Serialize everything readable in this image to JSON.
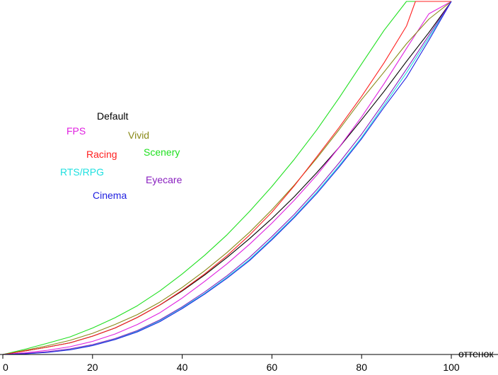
{
  "chart_data": {
    "type": "line",
    "title": "",
    "xlabel": "оттенок",
    "ylabel": "",
    "xlim": [
      0,
      100
    ],
    "ylim": [
      0,
      1
    ],
    "x_ticks": [
      "0",
      "20",
      "40",
      "60",
      "80",
      "100"
    ],
    "grid": false,
    "legend_placement": "left-center",
    "series": [
      {
        "name": "Default",
        "color": "#000000",
        "x": [
          0,
          5,
          10,
          15,
          20,
          25,
          30,
          35,
          40,
          45,
          50,
          55,
          60,
          65,
          70,
          75,
          80,
          85,
          90,
          95,
          100
        ],
        "y": [
          0,
          0.01,
          0.021,
          0.033,
          0.052,
          0.075,
          0.105,
          0.14,
          0.18,
          0.225,
          0.275,
          0.328,
          0.385,
          0.447,
          0.515,
          0.587,
          0.665,
          0.745,
          0.83,
          0.912,
          1.0
        ]
      },
      {
        "name": "FPS",
        "color": "#e020e0",
        "x": [
          0,
          5,
          10,
          15,
          20,
          25,
          30,
          35,
          40,
          45,
          50,
          55,
          60,
          65,
          70,
          75,
          80,
          85,
          90,
          95,
          100
        ],
        "y": [
          0,
          0.005,
          0.012,
          0.022,
          0.037,
          0.058,
          0.085,
          0.118,
          0.16,
          0.207,
          0.257,
          0.312,
          0.372,
          0.437,
          0.508,
          0.587,
          0.673,
          0.767,
          0.867,
          0.965,
          1.0
        ]
      },
      {
        "name": "Vivid",
        "color": "#8a8a1a",
        "x": [
          0,
          5,
          10,
          15,
          20,
          25,
          30,
          35,
          40,
          45,
          50,
          55,
          60,
          65,
          70,
          75,
          80,
          85,
          90,
          95,
          100
        ],
        "y": [
          0,
          0.012,
          0.025,
          0.04,
          0.06,
          0.085,
          0.113,
          0.148,
          0.19,
          0.237,
          0.289,
          0.346,
          0.41,
          0.48,
          0.556,
          0.637,
          0.722,
          0.8,
          0.88,
          0.95,
          1.0
        ]
      },
      {
        "name": "Scenery",
        "color": "#20e020",
        "x": [
          0,
          5,
          10,
          15,
          20,
          25,
          30,
          35,
          40,
          45,
          50,
          55,
          60,
          65,
          70,
          75,
          80,
          85,
          90,
          93,
          100
        ],
        "y": [
          0,
          0.015,
          0.032,
          0.05,
          0.075,
          0.104,
          0.138,
          0.18,
          0.228,
          0.281,
          0.339,
          0.405,
          0.476,
          0.553,
          0.636,
          0.727,
          0.823,
          0.918,
          1.0,
          1.0,
          1.0
        ]
      },
      {
        "name": "Racing",
        "color": "#ff2020",
        "x": [
          0,
          5,
          10,
          15,
          20,
          25,
          30,
          35,
          40,
          45,
          50,
          55,
          60,
          65,
          70,
          75,
          80,
          85,
          90,
          92,
          100
        ],
        "y": [
          0,
          0.01,
          0.021,
          0.033,
          0.052,
          0.075,
          0.105,
          0.14,
          0.182,
          0.228,
          0.28,
          0.338,
          0.403,
          0.478,
          0.56,
          0.643,
          0.731,
          0.826,
          0.93,
          1.0,
          1.0
        ]
      },
      {
        "name": "RTS/RPG",
        "color": "#20e0e0",
        "x": [
          0,
          5,
          10,
          15,
          20,
          25,
          30,
          35,
          40,
          45,
          50,
          55,
          60,
          65,
          70,
          75,
          80,
          85,
          90,
          95,
          100
        ],
        "y": [
          0,
          0.002,
          0.006,
          0.014,
          0.026,
          0.043,
          0.066,
          0.096,
          0.133,
          0.173,
          0.219,
          0.269,
          0.328,
          0.391,
          0.46,
          0.535,
          0.615,
          0.706,
          0.798,
          0.897,
          1.0
        ]
      },
      {
        "name": "Eyecare",
        "color": "#8a20c0",
        "x": [
          0,
          5,
          10,
          15,
          20,
          25,
          30,
          35,
          40,
          45,
          50,
          55,
          60,
          65,
          70,
          75,
          80,
          85,
          90,
          95,
          100
        ],
        "y": [
          0,
          0.003,
          0.008,
          0.016,
          0.028,
          0.045,
          0.068,
          0.098,
          0.135,
          0.177,
          0.223,
          0.275,
          0.334,
          0.397,
          0.467,
          0.543,
          0.624,
          0.714,
          0.808,
          0.904,
          1.0
        ]
      },
      {
        "name": "Cinema",
        "color": "#2020e0",
        "x": [
          0,
          5,
          10,
          15,
          20,
          25,
          30,
          35,
          40,
          45,
          50,
          55,
          60,
          65,
          70,
          75,
          80,
          85,
          90,
          95,
          100
        ],
        "y": [
          0,
          0.002,
          0.006,
          0.013,
          0.025,
          0.042,
          0.064,
          0.093,
          0.13,
          0.171,
          0.216,
          0.266,
          0.325,
          0.388,
          0.456,
          0.531,
          0.611,
          0.7,
          0.785,
          0.89,
          1.0
        ]
      }
    ]
  }
}
